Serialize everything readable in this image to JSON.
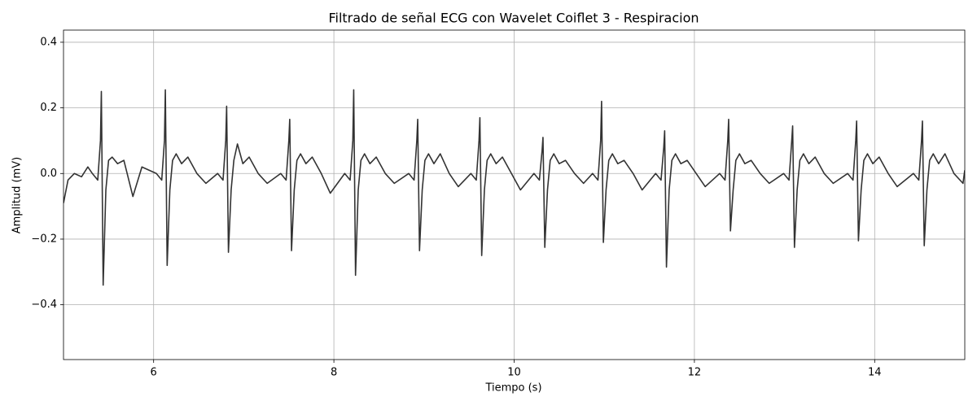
{
  "chart_data": {
    "type": "line",
    "title": "Filtrado de señal ECG con Wavelet Coiflet 3 - Respiracion",
    "xlabel": "Tiempo (s)",
    "ylabel": "Amplitud (mV)",
    "xlim": [
      5,
      15
    ],
    "ylim": [
      -0.567,
      0.437
    ],
    "xticks": [
      6,
      8,
      10,
      12,
      14
    ],
    "yticks": [
      {
        "value": -0.4,
        "label": "−0.4"
      },
      {
        "value": -0.2,
        "label": "−0.2"
      },
      {
        "value": 0,
        "label": "0.0"
      },
      0.2,
      0.4
    ],
    "grid": true,
    "series": [
      {
        "color": "#333333",
        "x": [
          5.0,
          5.05,
          5.12,
          5.2,
          5.27,
          5.32,
          5.38,
          5.41,
          5.42,
          5.44,
          5.47,
          5.5,
          5.54,
          5.6,
          5.67,
          5.77,
          5.87,
          6.03,
          6.09,
          6.12,
          6.13,
          6.15,
          6.18,
          6.21,
          6.25,
          6.31,
          6.38,
          6.48,
          6.58,
          6.71,
          6.77,
          6.8,
          6.81,
          6.83,
          6.86,
          6.89,
          6.93,
          6.99,
          7.06,
          7.16,
          7.26,
          7.41,
          7.47,
          7.5,
          7.51,
          7.53,
          7.56,
          7.59,
          7.63,
          7.69,
          7.76,
          7.86,
          7.96,
          8.12,
          8.18,
          8.21,
          8.22,
          8.24,
          8.27,
          8.3,
          8.34,
          8.4,
          8.47,
          8.57,
          8.67,
          8.83,
          8.89,
          8.92,
          8.93,
          8.95,
          8.98,
          9.01,
          9.05,
          9.11,
          9.18,
          9.28,
          9.38,
          9.52,
          9.58,
          9.61,
          9.62,
          9.64,
          9.67,
          9.7,
          9.74,
          9.8,
          9.87,
          9.97,
          10.07,
          10.22,
          10.28,
          10.31,
          10.32,
          10.34,
          10.37,
          10.4,
          10.44,
          10.5,
          10.57,
          10.67,
          10.77,
          10.87,
          10.93,
          10.96,
          10.97,
          10.99,
          11.02,
          11.05,
          11.09,
          11.15,
          11.22,
          11.32,
          11.42,
          11.57,
          11.63,
          11.66,
          11.67,
          11.69,
          11.72,
          11.75,
          11.79,
          11.85,
          11.92,
          12.02,
          12.12,
          12.28,
          12.34,
          12.37,
          12.38,
          12.4,
          12.43,
          12.46,
          12.5,
          12.56,
          12.63,
          12.73,
          12.83,
          12.99,
          13.05,
          13.08,
          13.09,
          13.11,
          13.14,
          13.17,
          13.21,
          13.27,
          13.34,
          13.44,
          13.54,
          13.7,
          13.76,
          13.79,
          13.8,
          13.82,
          13.85,
          13.88,
          13.92,
          13.98,
          14.05,
          14.15,
          14.25,
          14.43,
          14.49,
          14.52,
          14.53,
          14.55,
          14.58,
          14.61,
          14.65,
          14.71,
          14.78,
          14.88,
          14.98,
          15.0
        ],
        "values": [
          -0.09,
          -0.02,
          0.0,
          -0.01,
          0.02,
          0.0,
          -0.02,
          0.1,
          0.25,
          -0.34,
          -0.05,
          0.04,
          0.05,
          0.03,
          0.04,
          -0.07,
          0.02,
          0.0,
          -0.02,
          0.1,
          0.255,
          -0.28,
          -0.05,
          0.04,
          0.06,
          0.03,
          0.05,
          0.0,
          -0.03,
          0.0,
          -0.02,
          0.1,
          0.205,
          -0.24,
          -0.05,
          0.04,
          0.09,
          0.03,
          0.05,
          0.0,
          -0.03,
          0.0,
          -0.02,
          0.1,
          0.165,
          -0.235,
          -0.05,
          0.04,
          0.06,
          0.03,
          0.05,
          0.0,
          -0.06,
          0.0,
          -0.02,
          0.1,
          0.255,
          -0.31,
          -0.05,
          0.04,
          0.06,
          0.03,
          0.05,
          0.0,
          -0.03,
          0.0,
          -0.02,
          0.1,
          0.165,
          -0.235,
          -0.05,
          0.04,
          0.06,
          0.03,
          0.06,
          0.0,
          -0.04,
          0.0,
          -0.02,
          0.1,
          0.17,
          -0.25,
          -0.05,
          0.04,
          0.06,
          0.03,
          0.05,
          0.0,
          -0.05,
          0.0,
          -0.02,
          0.07,
          0.11,
          -0.225,
          -0.05,
          0.04,
          0.06,
          0.03,
          0.04,
          0.0,
          -0.03,
          0.0,
          -0.02,
          0.1,
          0.22,
          -0.21,
          -0.05,
          0.04,
          0.06,
          0.03,
          0.04,
          0.0,
          -0.05,
          0.0,
          -0.02,
          0.08,
          0.13,
          -0.285,
          -0.05,
          0.04,
          0.06,
          0.03,
          0.04,
          0.0,
          -0.04,
          0.0,
          -0.02,
          0.1,
          0.165,
          -0.175,
          -0.05,
          0.04,
          0.06,
          0.03,
          0.04,
          0.0,
          -0.03,
          0.0,
          -0.02,
          0.1,
          0.145,
          -0.225,
          -0.05,
          0.04,
          0.06,
          0.03,
          0.05,
          0.0,
          -0.03,
          0.0,
          -0.02,
          0.1,
          0.16,
          -0.205,
          -0.05,
          0.04,
          0.06,
          0.03,
          0.05,
          0.0,
          -0.04,
          0.0,
          -0.02,
          0.1,
          0.16,
          -0.22,
          -0.05,
          0.04,
          0.06,
          0.03,
          0.06,
          0.0,
          -0.03,
          0.01
        ]
      }
    ]
  }
}
